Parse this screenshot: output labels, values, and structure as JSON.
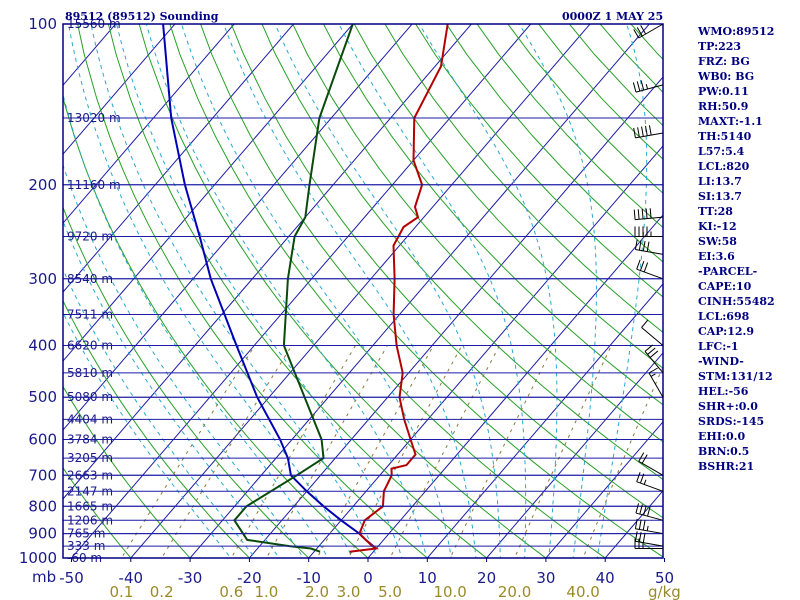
{
  "header": {
    "title": "89512 (89512) Sounding",
    "time": "0000Z  1 MAY 25"
  },
  "indices": [
    "WMO:89512",
    "TP:223",
    "FRZ: BG",
    "WB0: BG",
    "PW:0.11",
    "RH:50.9",
    "MAXT:-1.1",
    "TH:5140",
    "L57:5.4",
    "LCL:820",
    "LI:13.7",
    "SI:13.7",
    "TT:28",
    "KI:-12",
    "SW:58",
    "EI:3.6",
    "-PARCEL-",
    "CAPE:10",
    "CINH:55482",
    "LCL:698",
    "CAP:12.9",
    "LFC:-1",
    "-WIND-",
    "STM:131/12",
    "HEL:-56",
    "SHR+:0.0",
    "SRDS:-145",
    "EHI:0.0",
    "BRN:0.5",
    "BSHR:21"
  ],
  "colors": {
    "frame": "#000080",
    "isobar": "#1c1ca6",
    "isotherm": "#1c1ca6",
    "dry_adiabat": "#28a028",
    "moist_adiabat": "#2aa8d0",
    "mixing_ratio": "#8a7a3a",
    "temperature": "#b40000",
    "dewpoint": "#0a4a0a",
    "parcel": "#0000b4",
    "wind": "#000000"
  },
  "chart_data": {
    "type": "skew-t",
    "pressure_unit": "mb",
    "temperature_unit": "C",
    "mixing_ratio_unit": "g/kg",
    "pressure_ticks": [
      100,
      200,
      300,
      400,
      500,
      600,
      700,
      800,
      900,
      1000
    ],
    "temperature_ticks": [
      -50,
      -40,
      -30,
      -20,
      -10,
      0,
      10,
      20,
      30,
      40,
      50
    ],
    "mixing_ratio_ticks": [
      "0.1",
      "0.2",
      "0.6",
      "1.0",
      "2.0",
      "3.0",
      "5.0",
      "10.0",
      "20.0",
      "40.0"
    ],
    "height_labels": [
      {
        "p": 100,
        "label": "15560 m"
      },
      {
        "p": 150,
        "label": "13020 m"
      },
      {
        "p": 200,
        "label": "11160 m"
      },
      {
        "p": 250,
        "label": "9720 m"
      },
      {
        "p": 300,
        "label": "8540 m"
      },
      {
        "p": 350,
        "label": "7511 m"
      },
      {
        "p": 400,
        "label": "6620 m"
      },
      {
        "p": 450,
        "label": "5810 m"
      },
      {
        "p": 500,
        "label": "5080 m"
      },
      {
        "p": 550,
        "label": "4404 m"
      },
      {
        "p": 600,
        "label": "3784 m"
      },
      {
        "p": 650,
        "label": "3205 m"
      },
      {
        "p": 700,
        "label": "2663 m"
      },
      {
        "p": 750,
        "label": "2147 m"
      },
      {
        "p": 800,
        "label": "1665 m"
      },
      {
        "p": 850,
        "label": "1206 m"
      },
      {
        "p": 900,
        "label": "765 m"
      },
      {
        "p": 950,
        "label": "333 m"
      },
      {
        "p": 1000,
        "label": "-60 m"
      }
    ],
    "temperature": [
      {
        "p": 973,
        "t": -4
      },
      {
        "p": 960,
        "t": 0
      },
      {
        "p": 950,
        "t": -1
      },
      {
        "p": 925,
        "t": -3
      },
      {
        "p": 900,
        "t": -5
      },
      {
        "p": 850,
        "t": -6
      },
      {
        "p": 800,
        "t": -5
      },
      {
        "p": 750,
        "t": -7
      },
      {
        "p": 700,
        "t": -8
      },
      {
        "p": 680,
        "t": -9
      },
      {
        "p": 670,
        "t": -7
      },
      {
        "p": 640,
        "t": -7
      },
      {
        "p": 600,
        "t": -10
      },
      {
        "p": 550,
        "t": -14
      },
      {
        "p": 500,
        "t": -18
      },
      {
        "p": 450,
        "t": -21
      },
      {
        "p": 400,
        "t": -26
      },
      {
        "p": 350,
        "t": -31
      },
      {
        "p": 300,
        "t": -36
      },
      {
        "p": 260,
        "t": -41
      },
      {
        "p": 240,
        "t": -42
      },
      {
        "p": 230,
        "t": -41
      },
      {
        "p": 220,
        "t": -43
      },
      {
        "p": 200,
        "t": -45
      },
      {
        "p": 180,
        "t": -50
      },
      {
        "p": 150,
        "t": -56
      },
      {
        "p": 120,
        "t": -59
      },
      {
        "p": 100,
        "t": -64
      }
    ],
    "dewpoint": [
      {
        "p": 973,
        "t": -9
      },
      {
        "p": 960,
        "t": -11
      },
      {
        "p": 950,
        "t": -15
      },
      {
        "p": 925,
        "t": -23
      },
      {
        "p": 850,
        "t": -28
      },
      {
        "p": 800,
        "t": -28
      },
      {
        "p": 700,
        "t": -24
      },
      {
        "p": 650,
        "t": -22
      },
      {
        "p": 600,
        "t": -25
      },
      {
        "p": 500,
        "t": -34
      },
      {
        "p": 400,
        "t": -45
      },
      {
        "p": 300,
        "t": -54
      },
      {
        "p": 250,
        "t": -59
      },
      {
        "p": 230,
        "t": -60
      },
      {
        "p": 200,
        "t": -64
      },
      {
        "p": 150,
        "t": -72
      },
      {
        "p": 100,
        "t": -80
      }
    ],
    "parcel": [
      {
        "p": 960,
        "t": 0
      },
      {
        "p": 925,
        "t": -3
      },
      {
        "p": 900,
        "t": -5
      },
      {
        "p": 850,
        "t": -10
      },
      {
        "p": 800,
        "t": -15
      },
      {
        "p": 750,
        "t": -20
      },
      {
        "p": 700,
        "t": -25
      },
      {
        "p": 650,
        "t": -28
      },
      {
        "p": 600,
        "t": -32
      },
      {
        "p": 500,
        "t": -42
      },
      {
        "p": 400,
        "t": -53
      },
      {
        "p": 300,
        "t": -67
      },
      {
        "p": 250,
        "t": -75
      },
      {
        "p": 200,
        "t": -85
      },
      {
        "p": 150,
        "t": -97
      },
      {
        "p": 100,
        "t": -112
      }
    ],
    "winds": [
      {
        "p": 960,
        "dir": 270,
        "spd": 25
      },
      {
        "p": 950,
        "dir": 280,
        "spd": 30
      },
      {
        "p": 900,
        "dir": 280,
        "spd": 35
      },
      {
        "p": 850,
        "dir": 285,
        "spd": 40
      },
      {
        "p": 750,
        "dir": 290,
        "spd": 25
      },
      {
        "p": 700,
        "dir": 300,
        "spd": 20
      },
      {
        "p": 500,
        "dir": 330,
        "spd": 15
      },
      {
        "p": 450,
        "dir": 320,
        "spd": 30
      },
      {
        "p": 400,
        "dir": 310,
        "spd": 10
      },
      {
        "p": 300,
        "dir": 290,
        "spd": 30
      },
      {
        "p": 270,
        "dir": 280,
        "spd": 40
      },
      {
        "p": 250,
        "dir": 270,
        "spd": 45
      },
      {
        "p": 230,
        "dir": 265,
        "spd": 50
      },
      {
        "p": 160,
        "dir": 260,
        "spd": 50
      },
      {
        "p": 130,
        "dir": 255,
        "spd": 35
      },
      {
        "p": 100,
        "dir": 240,
        "spd": 30
      }
    ]
  }
}
